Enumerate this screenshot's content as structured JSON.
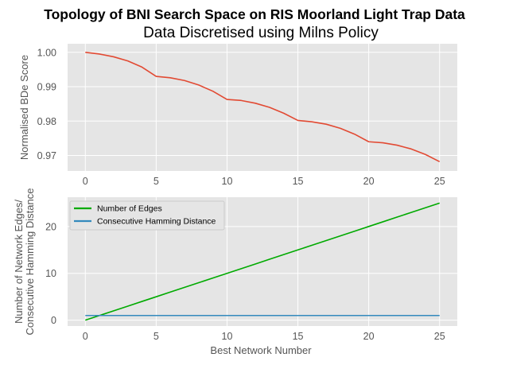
{
  "title": "Topology of BNI Search Space on RIS Moorland Light Trap Data",
  "subtitle": "Data Discretised using Milns Policy",
  "chart_data": [
    {
      "type": "line",
      "xlabel": "",
      "ylabel": "Normalised BDe Score",
      "xlim": [
        -1.25,
        26.25
      ],
      "ylim": [
        0.9655,
        1.0025
      ],
      "xticks": [
        0,
        5,
        10,
        15,
        20,
        25
      ],
      "yticks": [
        0.97,
        0.98,
        0.99,
        1.0
      ],
      "ytick_labels": [
        "0.97",
        "0.98",
        "0.99",
        "1.00"
      ],
      "grid": true,
      "background": "#E5E5E5",
      "series": [
        {
          "color": "#E24A33",
          "x": [
            0,
            1,
            2,
            3,
            4,
            5,
            6,
            7,
            8,
            9,
            10,
            11,
            12,
            13,
            14,
            15,
            16,
            17,
            18,
            19,
            20,
            21,
            22,
            23,
            24,
            25
          ],
          "values": [
            1.0,
            0.9995,
            0.9987,
            0.9975,
            0.9957,
            0.993,
            0.9926,
            0.9918,
            0.9905,
            0.9887,
            0.9863,
            0.986,
            0.9852,
            0.984,
            0.9823,
            0.9802,
            0.9798,
            0.9791,
            0.9779,
            0.9762,
            0.974,
            0.9737,
            0.973,
            0.9719,
            0.9703,
            0.9682
          ]
        }
      ]
    },
    {
      "type": "line",
      "xlabel": "Best Network Number",
      "ylabel": "Number of Network Edges/\nConsecutive Hamming Distance",
      "ylabel_lines": [
        "Number of Network Edges/",
        "Consecutive Hamming Distance"
      ],
      "xlim": [
        -1.25,
        26.25
      ],
      "ylim": [
        -1.25,
        26.25
      ],
      "xticks": [
        0,
        5,
        10,
        15,
        20,
        25
      ],
      "yticks": [
        0,
        10,
        20
      ],
      "grid": true,
      "background": "#E5E5E5",
      "legend": "top-left",
      "series": [
        {
          "name": "Number of Edges",
          "color": "#00AA00",
          "x": [
            0,
            1,
            2,
            3,
            4,
            5,
            6,
            7,
            8,
            9,
            10,
            11,
            12,
            13,
            14,
            15,
            16,
            17,
            18,
            19,
            20,
            21,
            22,
            23,
            24,
            25
          ],
          "values": [
            0,
            1,
            2,
            3,
            4,
            5,
            6,
            7,
            8,
            9,
            10,
            11,
            12,
            13,
            14,
            15,
            16,
            17,
            18,
            19,
            20,
            21,
            22,
            23,
            24,
            25
          ]
        },
        {
          "name": "Consecutive Hamming Distance",
          "color": "#348ABD",
          "x": [
            0,
            1,
            2,
            3,
            4,
            5,
            6,
            7,
            8,
            9,
            10,
            11,
            12,
            13,
            14,
            15,
            16,
            17,
            18,
            19,
            20,
            21,
            22,
            23,
            24,
            25
          ],
          "values": [
            1,
            1,
            1,
            1,
            1,
            1,
            1,
            1,
            1,
            1,
            1,
            1,
            1,
            1,
            1,
            1,
            1,
            1,
            1,
            1,
            1,
            1,
            1,
            1,
            1,
            1
          ]
        }
      ]
    }
  ]
}
